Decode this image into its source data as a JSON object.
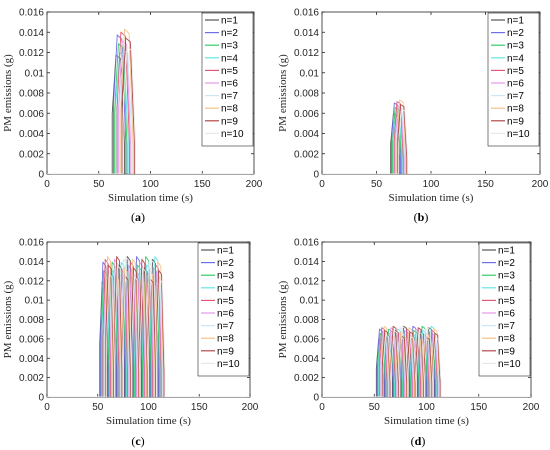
{
  "panels": [
    {
      "id": "a",
      "label": "a"
    },
    {
      "id": "b",
      "label": "b"
    },
    {
      "id": "c",
      "label": "c"
    },
    {
      "id": "d",
      "label": "d"
    }
  ],
  "chart_data": [
    {
      "type": "line",
      "panel": "a",
      "xlabel": "Simulation time (s)",
      "ylabel": "PM emissions (g)",
      "xlim": [
        0,
        200
      ],
      "ylim": [
        0,
        0.016
      ],
      "xticks": [
        "0",
        "50",
        "100",
        "150",
        "200"
      ],
      "yticks": [
        "0",
        "0.002",
        "0.004",
        "0.006",
        "0.008",
        "0.01",
        "0.012",
        "0.014",
        "0.016"
      ],
      "legend_position": "top-right",
      "grid": false,
      "pattern": {
        "start": 63,
        "end": 76,
        "count": 1,
        "peak": 0.0143,
        "base": 0.007
      },
      "series": [
        {
          "name": "n=1",
          "color": "#555555"
        },
        {
          "name": "n=2",
          "color": "#6f6fe8"
        },
        {
          "name": "n=3",
          "color": "#33cc66"
        },
        {
          "name": "n=4",
          "color": "#66e6e6"
        },
        {
          "name": "n=5",
          "color": "#e05a7a"
        },
        {
          "name": "n=6",
          "color": "#e599e8"
        },
        {
          "name": "n=7",
          "color": "#cce6f5"
        },
        {
          "name": "n=8",
          "color": "#f5c28a"
        },
        {
          "name": "n=9",
          "color": "#b24a4a"
        },
        {
          "name": "n=10",
          "color": "#e8e8e8"
        }
      ]
    },
    {
      "type": "line",
      "panel": "b",
      "xlabel": "Simulation time (s)",
      "ylabel": "PM emissions (g)",
      "xlim": [
        0,
        200
      ],
      "ylim": [
        0,
        0.016
      ],
      "xticks": [
        "0",
        "50",
        "100",
        "150",
        "200"
      ],
      "yticks": [
        "0",
        "0.002",
        "0.004",
        "0.006",
        "0.008",
        "0.01",
        "0.012",
        "0.014",
        "0.016"
      ],
      "legend_position": "top-right",
      "grid": false,
      "pattern": {
        "start": 63,
        "end": 72,
        "count": 1,
        "peak": 0.0073,
        "base": 0.0035
      },
      "series": [
        {
          "name": "n=1",
          "color": "#555555"
        },
        {
          "name": "n=2",
          "color": "#6f6fe8"
        },
        {
          "name": "n=3",
          "color": "#33cc66"
        },
        {
          "name": "n=4",
          "color": "#66e6e6"
        },
        {
          "name": "n=5",
          "color": "#e05a7a"
        },
        {
          "name": "n=6",
          "color": "#e599e8"
        },
        {
          "name": "n=7",
          "color": "#cce6f5"
        },
        {
          "name": "n=8",
          "color": "#f5c28a"
        },
        {
          "name": "n=9",
          "color": "#b24a4a"
        },
        {
          "name": "n=10",
          "color": "#e8e8e8"
        }
      ]
    },
    {
      "type": "line",
      "panel": "c",
      "xlabel": "Simulation time (s)",
      "ylabel": "PM emissions (g)",
      "xlim": [
        0,
        200
      ],
      "ylim": [
        0,
        0.016
      ],
      "xticks": [
        "0",
        "50",
        "100",
        "150",
        "200"
      ],
      "yticks": [
        "0",
        "0.002",
        "0.004",
        "0.006",
        "0.008",
        "0.01",
        "0.012",
        "0.014",
        "0.016"
      ],
      "legend_position": "top-right",
      "grid": false,
      "pattern": {
        "start": 52,
        "end": 110,
        "count": 7,
        "peak": 0.0145,
        "base": 0.0065
      },
      "series": [
        {
          "name": "n=1",
          "color": "#555555"
        },
        {
          "name": "n=2",
          "color": "#6f6fe8"
        },
        {
          "name": "n=3",
          "color": "#33cc66"
        },
        {
          "name": "n=4",
          "color": "#66e6e6"
        },
        {
          "name": "n=5",
          "color": "#e05a7a"
        },
        {
          "name": "n=6",
          "color": "#e599e8"
        },
        {
          "name": "n=7",
          "color": "#cce6f5"
        },
        {
          "name": "n=8",
          "color": "#f5c28a"
        },
        {
          "name": "n=9",
          "color": "#b24a4a"
        },
        {
          "name": "n=10",
          "color": "#e8e8e8"
        }
      ]
    },
    {
      "type": "line",
      "panel": "d",
      "xlabel": "Simulation time (s)",
      "ylabel": "PM emissions (g)",
      "xlim": [
        0,
        200
      ],
      "ylim": [
        0,
        0.016
      ],
      "xticks": [
        "0",
        "50",
        "100",
        "150",
        "200"
      ],
      "yticks": [
        "0",
        "0.002",
        "0.004",
        "0.006",
        "0.008",
        "0.01",
        "0.012",
        "0.014",
        "0.016"
      ],
      "legend_position": "top-right",
      "grid": false,
      "pattern": {
        "start": 52,
        "end": 108,
        "count": 7,
        "peak": 0.0073,
        "base": 0.0035
      },
      "series": [
        {
          "name": "n=1",
          "color": "#555555"
        },
        {
          "name": "n=2",
          "color": "#6f6fe8"
        },
        {
          "name": "n=3",
          "color": "#33cc66"
        },
        {
          "name": "n=4",
          "color": "#66e6e6"
        },
        {
          "name": "n=5",
          "color": "#e05a7a"
        },
        {
          "name": "n=6",
          "color": "#e599e8"
        },
        {
          "name": "n=7",
          "color": "#cce6f5"
        },
        {
          "name": "n=8",
          "color": "#f5c28a"
        },
        {
          "name": "n=9",
          "color": "#b24a4a"
        },
        {
          "name": "n=10",
          "color": "#e8e8e8"
        }
      ]
    }
  ]
}
